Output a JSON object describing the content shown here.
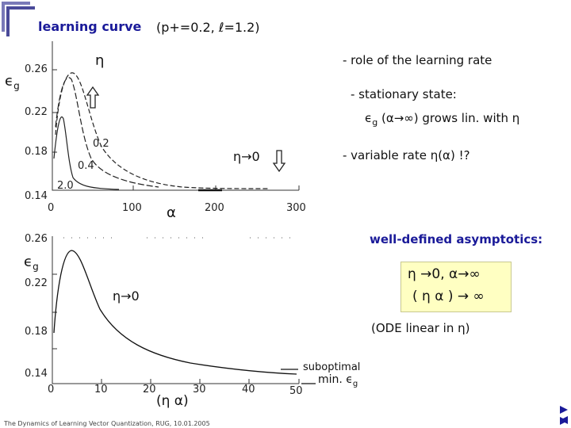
{
  "header": {
    "title": "learning curve",
    "params": "(p+=0.2,  ℓ=1.2)"
  },
  "top_plot": {
    "y_axis_symbol": "ϵ",
    "y_axis_sub": "g",
    "eta_label": "η",
    "y_ticks": [
      "0.26",
      "0.22",
      "0.18",
      "0.14"
    ],
    "x_ticks": [
      "0",
      "100",
      "200",
      "300"
    ],
    "x_axis_label": "α",
    "curve_labels": [
      "0.2",
      "0.4",
      "2.0"
    ],
    "eta_to_zero": "η→0"
  },
  "bottom_plot": {
    "y_axis_symbol": "ϵ",
    "y_axis_sub": "g",
    "y_ticks": [
      "0.26",
      "0.22",
      "0.18",
      "0.14"
    ],
    "x_ticks": [
      "0",
      "10",
      "20",
      "30",
      "40",
      "50"
    ],
    "x_axis_label": "(η α)",
    "eta_to_zero": "η→0",
    "suboptimal_label": "suboptimal",
    "min_label": "min. ϵ",
    "min_sub": "g"
  },
  "notes": {
    "role": "- role of the learning rate",
    "stationary": "- stationary state:",
    "grows_prefix": "ϵ",
    "grows_sub": "g",
    "grows_rest": " (α→∞) grows lin. with η",
    "variable": "- variable rate η(α) !?",
    "asymptotics": "well-defined asymptotics:",
    "limit_1": "η →0,  α→∞",
    "limit_2": "( η α ) → ∞",
    "ode": "(ODE linear in η)"
  },
  "footer": "The Dynamics of Learning Vector Quantization, RUG, 10.01.2005",
  "colors": {
    "title": "#1a1a99",
    "box_fill": "#ffffc2",
    "nav": "#1a1a99"
  },
  "icons": [
    "corner-bracket-icon",
    "up-arrow-icon",
    "down-arrow-icon",
    "nav-next-icon",
    "nav-prev-icon",
    "nav-end-icon"
  ]
}
